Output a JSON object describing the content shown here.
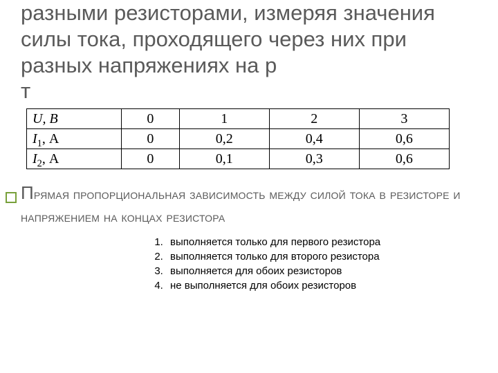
{
  "lead": {
    "line1": "разными резисторами, измеряя значения",
    "line2": "силы тока, проходящего через них при разных напряжениях на р",
    "line3": "т"
  },
  "table": {
    "row_labels": {
      "u": "U, В",
      "i1_prefix": "I",
      "i1_sub": "1",
      "i1_suffix": ", А",
      "i2_prefix": "I",
      "i2_sub": "2",
      "i2_suffix": ", А"
    },
    "rows": {
      "u": [
        "0",
        "1",
        "2",
        "3"
      ],
      "i1": [
        "0",
        "0,2",
        "0,4",
        "0,6"
      ],
      "i2": [
        "0",
        "0,1",
        "0,3",
        "0,6"
      ]
    }
  },
  "statement": {
    "first_char": "П",
    "rest_line1": "рямая пропорциональная зависимость между силой тока в резисторе и",
    "line2": "напряжением на концах резистора"
  },
  "answers": [
    "выполняется только для первого резистора",
    "выполняется только для второго резистора",
    "выполняется для обоих резисторов",
    "не выполняется для обоих резисторов"
  ]
}
